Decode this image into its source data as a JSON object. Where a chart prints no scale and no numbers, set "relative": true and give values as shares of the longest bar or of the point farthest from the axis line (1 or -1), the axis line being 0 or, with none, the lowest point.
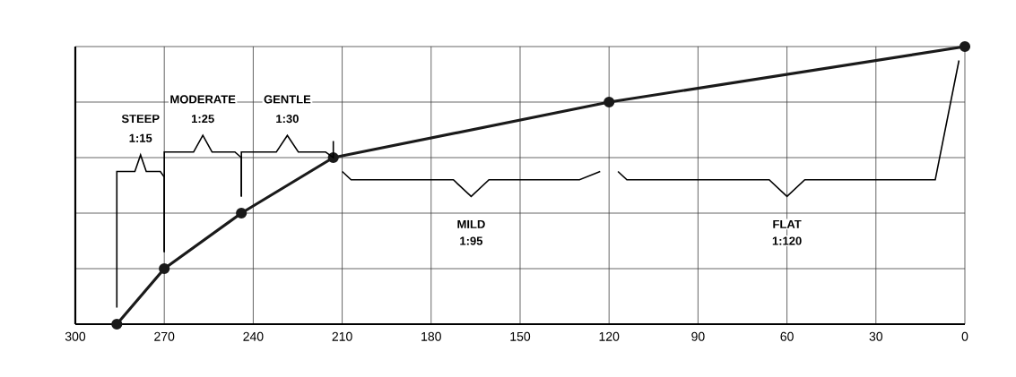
{
  "chart_data": {
    "type": "line",
    "relative": true,
    "x": [
      286,
      270,
      244,
      213,
      120,
      0
    ],
    "series": [
      {
        "color": "#1a1a1a",
        "values": [
          0,
          0.2,
          0.4,
          0.6,
          0.8,
          1
        ]
      }
    ],
    "xlim": [
      300,
      0
    ],
    "xticks": [
      300,
      270,
      240,
      210,
      180,
      150,
      120,
      90,
      60,
      30,
      0
    ],
    "grid": true,
    "marker": "circle",
    "line_style": "solid",
    "annotations": [
      "STEEP",
      "1:15",
      "MODERATE",
      "1:25",
      "GENTLE",
      "1:30",
      "MILD",
      "1:95",
      "FLAT",
      "1:120"
    ]
  }
}
